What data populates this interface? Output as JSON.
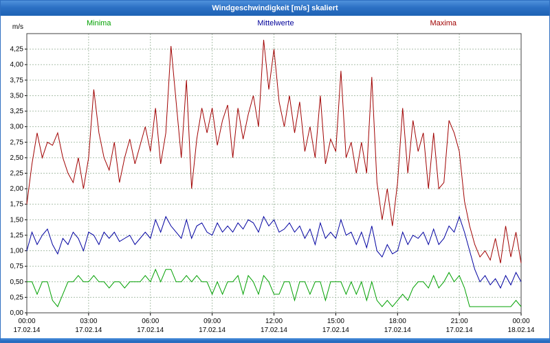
{
  "title_bar": {
    "title": "Windgeschwindigkeit [m/s] skaliert"
  },
  "colors": {
    "titlebar_blue": "#2c70c4",
    "minima_green": "#00a000",
    "mittelwerte_blue": "#000099",
    "maxima_red": "#a00000",
    "grid": "#a9bfa9",
    "frame": "#404040"
  },
  "legend": [
    {
      "label": "Minima",
      "color": "#00a000"
    },
    {
      "label": "Mittelwerte",
      "color": "#000099"
    },
    {
      "label": "Maxima",
      "color": "#a00000"
    }
  ],
  "chart_data": {
    "type": "line",
    "title": "Windgeschwindigkeit [m/s] skaliert",
    "xlabel": "",
    "ylabel": "m/s",
    "ylim": [
      0,
      4.5
    ],
    "x_range_hours": [
      0,
      24
    ],
    "sample_interval_minutes": 15,
    "grid": "on",
    "legend_position": "top",
    "y_ticks": [
      {
        "value": 0.0,
        "label": "0,00"
      },
      {
        "value": 0.25,
        "label": "0,25"
      },
      {
        "value": 0.5,
        "label": "0,50"
      },
      {
        "value": 0.75,
        "label": "0,75"
      },
      {
        "value": 1.0,
        "label": "1,00"
      },
      {
        "value": 1.25,
        "label": "1,25"
      },
      {
        "value": 1.5,
        "label": "1,50"
      },
      {
        "value": 1.75,
        "label": "1,75"
      },
      {
        "value": 2.0,
        "label": "2,00"
      },
      {
        "value": 2.25,
        "label": "2,25"
      },
      {
        "value": 2.5,
        "label": "2,50"
      },
      {
        "value": 2.75,
        "label": "2,75"
      },
      {
        "value": 3.0,
        "label": "3,00"
      },
      {
        "value": 3.25,
        "label": "3,25"
      },
      {
        "value": 3.5,
        "label": "3,50"
      },
      {
        "value": 3.75,
        "label": "3,75"
      },
      {
        "value": 4.0,
        "label": "4,00"
      },
      {
        "value": 4.25,
        "label": "4,25"
      }
    ],
    "x_ticks": [
      {
        "hour": 0,
        "time": "00:00",
        "date": "17.02.14"
      },
      {
        "hour": 3,
        "time": "03:00",
        "date": "17.02.14"
      },
      {
        "hour": 6,
        "time": "06:00",
        "date": "17.02.14"
      },
      {
        "hour": 9,
        "time": "09:00",
        "date": "17.02.14"
      },
      {
        "hour": 12,
        "time": "12:00",
        "date": "17.02.14"
      },
      {
        "hour": 15,
        "time": "15:00",
        "date": "17.02.14"
      },
      {
        "hour": 18,
        "time": "18:00",
        "date": "17.02.14"
      },
      {
        "hour": 21,
        "time": "21:00",
        "date": "17.02.14"
      },
      {
        "hour": 24,
        "time": "00:00",
        "date": "18.02.14"
      }
    ],
    "series": [
      {
        "name": "Minima",
        "color": "#00a000",
        "values": [
          0.5,
          0.5,
          0.3,
          0.5,
          0.5,
          0.2,
          0.1,
          0.3,
          0.5,
          0.5,
          0.6,
          0.5,
          0.5,
          0.6,
          0.5,
          0.5,
          0.4,
          0.5,
          0.5,
          0.4,
          0.5,
          0.5,
          0.5,
          0.6,
          0.5,
          0.7,
          0.5,
          0.7,
          0.7,
          0.5,
          0.5,
          0.6,
          0.5,
          0.6,
          0.5,
          0.5,
          0.3,
          0.5,
          0.3,
          0.5,
          0.5,
          0.6,
          0.3,
          0.6,
          0.5,
          0.3,
          0.6,
          0.5,
          0.3,
          0.3,
          0.5,
          0.5,
          0.2,
          0.5,
          0.5,
          0.3,
          0.5,
          0.5,
          0.2,
          0.5,
          0.5,
          0.5,
          0.3,
          0.5,
          0.3,
          0.5,
          0.2,
          0.5,
          0.2,
          0.1,
          0.2,
          0.1,
          0.2,
          0.3,
          0.2,
          0.4,
          0.5,
          0.5,
          0.4,
          0.6,
          0.4,
          0.5,
          0.65,
          0.5,
          0.6,
          0.4,
          0.1,
          0.1,
          0.1,
          0.1,
          0.1,
          0.1,
          0.1,
          0.1,
          0.1,
          0.2,
          0.1
        ]
      },
      {
        "name": "Mittelwerte",
        "color": "#0000a0",
        "values": [
          1.0,
          1.3,
          1.1,
          1.25,
          1.35,
          1.1,
          0.95,
          1.2,
          1.1,
          1.3,
          1.2,
          1.0,
          1.3,
          1.25,
          1.1,
          1.3,
          1.2,
          1.3,
          1.15,
          1.2,
          1.25,
          1.1,
          1.2,
          1.3,
          1.2,
          1.5,
          1.3,
          1.55,
          1.4,
          1.3,
          1.2,
          1.5,
          1.2,
          1.4,
          1.45,
          1.3,
          1.25,
          1.45,
          1.3,
          1.4,
          1.3,
          1.45,
          1.35,
          1.5,
          1.45,
          1.3,
          1.55,
          1.4,
          1.5,
          1.3,
          1.35,
          1.45,
          1.3,
          1.4,
          1.2,
          1.35,
          1.1,
          1.45,
          1.2,
          1.3,
          1.2,
          1.5,
          1.25,
          1.3,
          1.1,
          1.3,
          1.05,
          1.4,
          1.0,
          0.9,
          1.1,
          0.95,
          1.0,
          1.3,
          1.1,
          1.25,
          1.2,
          1.3,
          1.1,
          1.35,
          1.1,
          1.2,
          1.4,
          1.3,
          1.55,
          1.3,
          1.0,
          0.7,
          0.5,
          0.6,
          0.45,
          0.55,
          0.4,
          0.6,
          0.45,
          0.65,
          0.5
        ]
      },
      {
        "name": "Maxima",
        "color": "#a00000",
        "values": [
          1.75,
          2.4,
          2.9,
          2.5,
          2.75,
          2.7,
          2.9,
          2.5,
          2.25,
          2.1,
          2.5,
          2.0,
          2.5,
          3.6,
          2.9,
          2.5,
          2.3,
          2.75,
          2.1,
          2.5,
          2.8,
          2.4,
          2.7,
          3.0,
          2.6,
          3.3,
          2.4,
          2.9,
          4.3,
          3.4,
          2.5,
          3.75,
          2.0,
          2.8,
          3.3,
          2.9,
          3.3,
          2.7,
          3.1,
          3.35,
          2.5,
          3.3,
          2.8,
          3.2,
          3.5,
          3.0,
          4.4,
          3.6,
          4.25,
          3.4,
          3.0,
          3.5,
          2.9,
          3.4,
          2.6,
          3.0,
          2.5,
          3.5,
          2.4,
          2.8,
          2.6,
          3.9,
          2.5,
          2.75,
          2.25,
          2.75,
          2.25,
          3.8,
          2.1,
          1.5,
          2.0,
          1.4,
          2.1,
          3.3,
          2.25,
          3.1,
          2.6,
          2.9,
          2.0,
          2.9,
          2.0,
          2.1,
          3.1,
          2.9,
          2.6,
          1.8,
          1.4,
          1.1,
          0.9,
          1.0,
          0.85,
          1.2,
          0.8,
          1.4,
          0.9,
          1.3,
          0.8
        ]
      }
    ]
  }
}
